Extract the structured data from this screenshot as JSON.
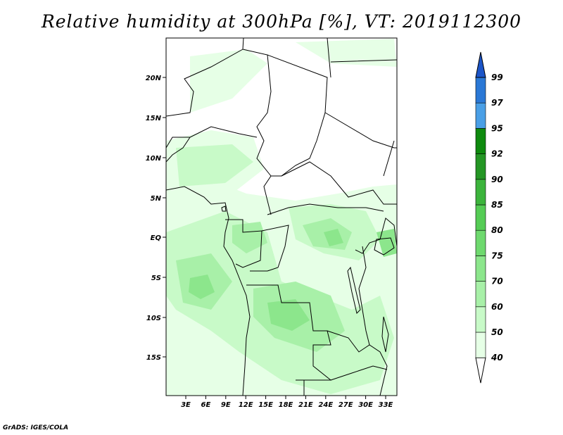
{
  "title": "Relative humidity at 300hPa [%], VT: 2019112300",
  "footer": "GrADS: IGES/COLA",
  "axes": {
    "lat_labels": [
      "20N",
      "15N",
      "10N",
      "5N",
      "EQ",
      "5S",
      "10S",
      "15S"
    ],
    "lon_labels": [
      "3E",
      "6E",
      "9E",
      "12E",
      "15E",
      "18E",
      "21E",
      "24E",
      "27E",
      "30E",
      "33E"
    ]
  },
  "colorbar": {
    "levels": [
      "40",
      "50",
      "60",
      "70",
      "75",
      "80",
      "85",
      "90",
      "92",
      "95",
      "97",
      "99"
    ],
    "colors": [
      "#ffffff",
      "#e6ffe6",
      "#c8fac8",
      "#a8f0a8",
      "#8ce68c",
      "#6ed96e",
      "#55cc55",
      "#3cb43c",
      "#249624",
      "#0e8a0e",
      "#4a9fe6",
      "#2a78d6",
      "#1c55c8"
    ]
  }
}
